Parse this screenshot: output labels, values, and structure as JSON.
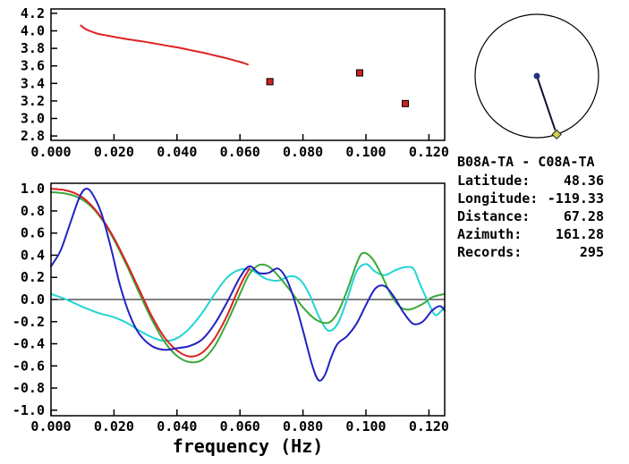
{
  "station_info": {
    "title": "B08A-TA - C08A-TA",
    "rows": [
      {
        "label": "Latitude:",
        "value": "48.36"
      },
      {
        "label": "Longitude:",
        "value": "-119.33"
      },
      {
        "label": "Distance:",
        "value": "67.28"
      },
      {
        "label": "Azimuth:",
        "value": "161.28"
      },
      {
        "label": "Records:",
        "value": "295"
      }
    ]
  },
  "azimuth_diagram": {
    "azimuth_deg": 161.28,
    "circle_color": "#000000",
    "line_color": "#111133",
    "center_color": "#223377",
    "end_color": "#ccd24a"
  },
  "chart_data": [
    {
      "id": "dispersion",
      "type": "line",
      "title": "",
      "xlabel": "",
      "ylabel": "",
      "xlim": [
        0,
        0.125
      ],
      "ylim": [
        2.75,
        4.25
      ],
      "grid": false,
      "legend": "none",
      "xticks": {
        "values": [
          0,
          0.02,
          0.04,
          0.06,
          0.08,
          0.1,
          0.12
        ],
        "labels": [
          "0.000",
          "0.020",
          "0.040",
          "0.060",
          "0.080",
          "0.100",
          "0.120"
        ]
      },
      "yticks": {
        "values": [
          2.8,
          3.0,
          3.2,
          3.4,
          3.6,
          3.8,
          4.0,
          4.2
        ],
        "labels": [
          "2.8",
          "3.0",
          "3.2",
          "3.4",
          "3.6",
          "3.8",
          "4.0",
          "4.2"
        ]
      },
      "series": [
        {
          "name": "phase-velocity-curve",
          "color": "#dd2222",
          "points": [
            [
              0.0095,
              4.06
            ],
            [
              0.011,
              4.02
            ],
            [
              0.013,
              3.99
            ],
            [
              0.015,
              3.965
            ],
            [
              0.018,
              3.945
            ],
            [
              0.021,
              3.925
            ],
            [
              0.025,
              3.9
            ],
            [
              0.029,
              3.88
            ],
            [
              0.033,
              3.855
            ],
            [
              0.037,
              3.83
            ],
            [
              0.041,
              3.805
            ],
            [
              0.045,
              3.775
            ],
            [
              0.049,
              3.745
            ],
            [
              0.053,
              3.71
            ],
            [
              0.056,
              3.685
            ],
            [
              0.059,
              3.655
            ],
            [
              0.061,
              3.635
            ],
            [
              0.0625,
              3.615
            ]
          ]
        }
      ],
      "markers": {
        "name": "picked-point",
        "color": "#cc2222",
        "points": [
          [
            0.0695,
            3.42
          ],
          [
            0.098,
            3.52
          ],
          [
            0.1125,
            3.17
          ]
        ]
      }
    },
    {
      "id": "waveforms",
      "type": "line",
      "title": "",
      "xlabel": "frequency (Hz)",
      "ylabel": "",
      "xlim": [
        0,
        0.125
      ],
      "ylim": [
        -1.05,
        1.05
      ],
      "grid": false,
      "legend": "none",
      "zero_line": true,
      "xticks": {
        "values": [
          0,
          0.02,
          0.04,
          0.06,
          0.08,
          0.1,
          0.12
        ],
        "labels": [
          "0.000",
          "0.020",
          "0.040",
          "0.060",
          "0.080",
          "0.100",
          "0.120"
        ]
      },
      "yticks": {
        "values": [
          -1.0,
          -0.8,
          -0.6,
          -0.4,
          -0.2,
          0.0,
          0.2,
          0.4,
          0.6,
          0.8,
          1.0
        ],
        "labels": [
          "-1.0",
          "-0.8",
          "-0.6",
          "-0.4",
          "-0.2",
          "0.0",
          "0.2",
          "0.4",
          "0.6",
          "0.8",
          "1.0"
        ]
      },
      "series": [
        {
          "name": "cyan-trace",
          "color": "#22d4d4",
          "points": [
            [
              0,
              0.05
            ],
            [
              0.004,
              0.01
            ],
            [
              0.008,
              -0.04
            ],
            [
              0.012,
              -0.09
            ],
            [
              0.016,
              -0.13
            ],
            [
              0.02,
              -0.16
            ],
            [
              0.024,
              -0.21
            ],
            [
              0.028,
              -0.28
            ],
            [
              0.032,
              -0.34
            ],
            [
              0.036,
              -0.375
            ],
            [
              0.04,
              -0.35
            ],
            [
              0.044,
              -0.26
            ],
            [
              0.048,
              -0.12
            ],
            [
              0.052,
              0.05
            ],
            [
              0.056,
              0.2
            ],
            [
              0.06,
              0.27
            ],
            [
              0.064,
              0.26
            ],
            [
              0.068,
              0.19
            ],
            [
              0.072,
              0.17
            ],
            [
              0.076,
              0.21
            ],
            [
              0.079,
              0.18
            ],
            [
              0.082,
              0.05
            ],
            [
              0.085,
              -0.15
            ],
            [
              0.088,
              -0.28
            ],
            [
              0.091,
              -0.22
            ],
            [
              0.094,
              0.0
            ],
            [
              0.097,
              0.25
            ],
            [
              0.1,
              0.32
            ],
            [
              0.103,
              0.25
            ],
            [
              0.106,
              0.22
            ],
            [
              0.109,
              0.26
            ],
            [
              0.112,
              0.29
            ],
            [
              0.115,
              0.28
            ],
            [
              0.117,
              0.15
            ],
            [
              0.12,
              -0.04
            ],
            [
              0.122,
              -0.14
            ],
            [
              0.124,
              -0.1
            ],
            [
              0.125,
              -0.06
            ]
          ]
        },
        {
          "name": "green-trace",
          "color": "#3aa83a",
          "points": [
            [
              0,
              0.97
            ],
            [
              0.004,
              0.96
            ],
            [
              0.008,
              0.93
            ],
            [
              0.012,
              0.86
            ],
            [
              0.016,
              0.73
            ],
            [
              0.02,
              0.54
            ],
            [
              0.024,
              0.31
            ],
            [
              0.028,
              0.06
            ],
            [
              0.032,
              -0.18
            ],
            [
              0.036,
              -0.38
            ],
            [
              0.04,
              -0.51
            ],
            [
              0.044,
              -0.565
            ],
            [
              0.048,
              -0.545
            ],
            [
              0.052,
              -0.42
            ],
            [
              0.056,
              -0.2
            ],
            [
              0.06,
              0.05
            ],
            [
              0.063,
              0.23
            ],
            [
              0.066,
              0.31
            ],
            [
              0.069,
              0.3
            ],
            [
              0.072,
              0.22
            ],
            [
              0.076,
              0.08
            ],
            [
              0.08,
              -0.07
            ],
            [
              0.084,
              -0.18
            ],
            [
              0.088,
              -0.21
            ],
            [
              0.091,
              -0.12
            ],
            [
              0.094,
              0.08
            ],
            [
              0.097,
              0.32
            ],
            [
              0.099,
              0.42
            ],
            [
              0.102,
              0.37
            ],
            [
              0.105,
              0.22
            ],
            [
              0.108,
              0.04
            ],
            [
              0.111,
              -0.07
            ],
            [
              0.114,
              -0.09
            ],
            [
              0.118,
              -0.04
            ],
            [
              0.121,
              0.02
            ],
            [
              0.125,
              0.05
            ]
          ]
        },
        {
          "name": "red-trace",
          "color": "#dd2222",
          "points": [
            [
              0,
              1.0
            ],
            [
              0.004,
              0.99
            ],
            [
              0.008,
              0.955
            ],
            [
              0.012,
              0.875
            ],
            [
              0.016,
              0.74
            ],
            [
              0.02,
              0.555
            ],
            [
              0.024,
              0.33
            ],
            [
              0.028,
              0.09
            ],
            [
              0.032,
              -0.15
            ],
            [
              0.036,
              -0.34
            ],
            [
              0.04,
              -0.46
            ],
            [
              0.044,
              -0.515
            ],
            [
              0.048,
              -0.48
            ],
            [
              0.052,
              -0.35
            ],
            [
              0.056,
              -0.14
            ],
            [
              0.059,
              0.06
            ],
            [
              0.061,
              0.18
            ],
            [
              0.063,
              0.28
            ]
          ]
        },
        {
          "name": "blue-trace",
          "color": "#2222c0",
          "points": [
            [
              0,
              0.3
            ],
            [
              0.003,
              0.44
            ],
            [
              0.006,
              0.68
            ],
            [
              0.009,
              0.92
            ],
            [
              0.011,
              1.0
            ],
            [
              0.013,
              0.96
            ],
            [
              0.016,
              0.78
            ],
            [
              0.019,
              0.47
            ],
            [
              0.022,
              0.12
            ],
            [
              0.025,
              -0.14
            ],
            [
              0.028,
              -0.31
            ],
            [
              0.032,
              -0.42
            ],
            [
              0.036,
              -0.455
            ],
            [
              0.04,
              -0.44
            ],
            [
              0.044,
              -0.42
            ],
            [
              0.048,
              -0.36
            ],
            [
              0.052,
              -0.22
            ],
            [
              0.056,
              -0.02
            ],
            [
              0.06,
              0.2
            ],
            [
              0.063,
              0.3
            ],
            [
              0.066,
              0.24
            ],
            [
              0.069,
              0.24
            ],
            [
              0.072,
              0.28
            ],
            [
              0.0745,
              0.2
            ],
            [
              0.077,
              0.02
            ],
            [
              0.08,
              -0.28
            ],
            [
              0.083,
              -0.6
            ],
            [
              0.085,
              -0.73
            ],
            [
              0.087,
              -0.68
            ],
            [
              0.089,
              -0.52
            ],
            [
              0.091,
              -0.4
            ],
            [
              0.094,
              -0.33
            ],
            [
              0.097,
              -0.22
            ],
            [
              0.1,
              -0.05
            ],
            [
              0.103,
              0.1
            ],
            [
              0.106,
              0.12
            ],
            [
              0.109,
              0.02
            ],
            [
              0.112,
              -0.12
            ],
            [
              0.115,
              -0.22
            ],
            [
              0.118,
              -0.2
            ],
            [
              0.121,
              -0.1
            ],
            [
              0.1235,
              -0.06
            ],
            [
              0.125,
              -0.1
            ]
          ]
        }
      ]
    }
  ]
}
